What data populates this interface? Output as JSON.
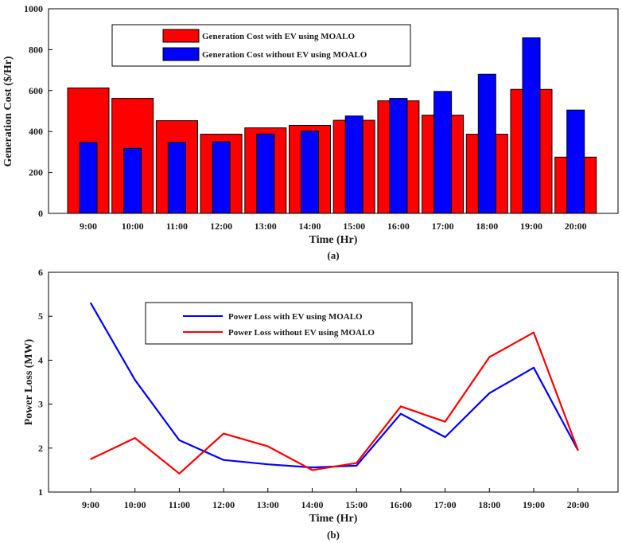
{
  "chart_data": [
    {
      "type": "bar",
      "caption": "(a)",
      "categories": [
        "9:00",
        "10:00",
        "11:00",
        "12:00",
        "13:00",
        "14:00",
        "15:00",
        "16:00",
        "17:00",
        "18:00",
        "19:00",
        "20:00"
      ],
      "series": [
        {
          "name": "Generation Cost with EV using MOALO",
          "color": "#ff0000",
          "values": [
            613,
            562,
            453,
            387,
            418,
            430,
            455,
            550,
            480,
            387,
            606,
            275
          ]
        },
        {
          "name": "Generation Cost without EV using MOALO",
          "color": "#0000ff",
          "values": [
            347,
            318,
            347,
            350,
            388,
            402,
            476,
            562,
            596,
            680,
            858,
            505
          ]
        }
      ],
      "title": "",
      "xlabel": "Time (Hr)",
      "ylabel": "Generation Cost ($/Hr)",
      "ylim": [
        0,
        1000
      ],
      "yticks": [
        "0",
        "200",
        "400",
        "600",
        "800",
        "1000"
      ],
      "legend_position": "top-center"
    },
    {
      "type": "line",
      "caption": "(b)",
      "categories": [
        "9:00",
        "10:00",
        "11:00",
        "12:00",
        "13:00",
        "14:00",
        "15:00",
        "16:00",
        "17:00",
        "18:00",
        "19:00",
        "20:00"
      ],
      "series": [
        {
          "name": "Power Loss with EV using MOALO",
          "color": "#0000ff",
          "values": [
            5.3,
            3.55,
            2.18,
            1.73,
            1.63,
            1.56,
            1.6,
            2.78,
            2.25,
            3.25,
            3.83,
            1.95
          ]
        },
        {
          "name": "Power Loss without EV using MOALO",
          "color": "#ff0000",
          "values": [
            1.75,
            2.23,
            1.42,
            2.33,
            2.04,
            1.5,
            1.66,
            2.95,
            2.6,
            4.07,
            4.63,
            1.95
          ]
        }
      ],
      "title": "",
      "xlabel": "Time (Hr)",
      "ylabel": "Power Loss (MW)",
      "ylim": [
        1,
        6
      ],
      "yticks": [
        "1",
        "2",
        "3",
        "4",
        "5",
        "6"
      ],
      "legend_position": "top-center"
    }
  ]
}
